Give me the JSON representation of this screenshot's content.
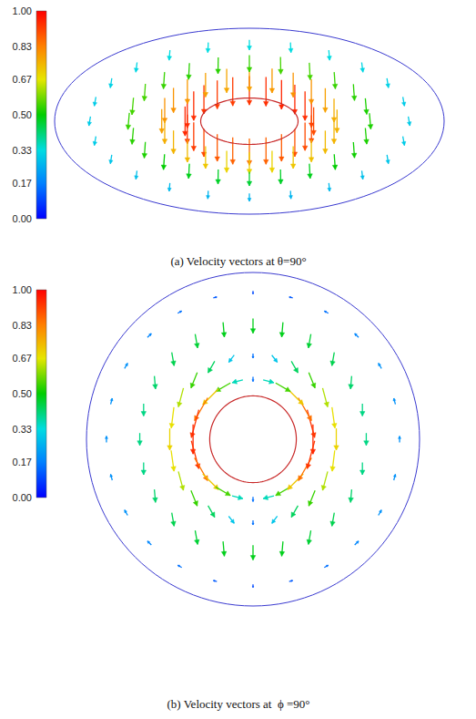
{
  "chart_data": [
    {
      "type": "vector_field",
      "title": "(a) Velocity vectors at θ=90°",
      "inner_radius": 0.25,
      "colorbar": {
        "range": [
          0,
          1
        ],
        "ticks": [
          {
            "value": 0,
            "label": "0.00"
          },
          0.17,
          0.33,
          {
            "value": 0.5,
            "label": "0.50"
          },
          0.67,
          0.83,
          {
            "value": 1,
            "label": "1.00"
          }
        ]
      },
      "angles": [
        0,
        15,
        30,
        45,
        60,
        75,
        90,
        105,
        120,
        135,
        150,
        165,
        180,
        195,
        210,
        225,
        240,
        255,
        270,
        285,
        300,
        315,
        330,
        345
      ],
      "rings": [
        {
          "r": 0.33,
          "speed": [
            0.9,
            0.92,
            0.94,
            0.95,
            0.95,
            0.94,
            0.93,
            0.92,
            0.92,
            0.93,
            0.94,
            0.95,
            0.95,
            0.94,
            0.92,
            0.9,
            0.88,
            0.87,
            0.86,
            0.87,
            0.88,
            0.89,
            0.9,
            0.9
          ],
          "direction": [
            -90,
            -90,
            -90,
            -90,
            -90,
            -90,
            -90,
            -90,
            -90,
            -90,
            -90,
            -90,
            -90,
            -90,
            -90,
            -90,
            -90,
            -90,
            -90,
            -90,
            -90,
            -90,
            -90,
            -90
          ]
        },
        {
          "r": 0.45,
          "speed": [
            0.75,
            0.76,
            0.78,
            0.8,
            0.8,
            0.79,
            0.78,
            0.77,
            0.78,
            0.79,
            0.8,
            0.8,
            0.78,
            0.76,
            0.75,
            0.74,
            0.72,
            0.7,
            0.7,
            0.7,
            0.72,
            0.73,
            0.74,
            0.75
          ],
          "direction": [
            -90,
            -90,
            -90,
            -90,
            -90,
            -90,
            -90,
            -90,
            -90,
            -90,
            -90,
            -90,
            -90,
            -90,
            -90,
            -90,
            -90,
            -90,
            -90,
            -90,
            -90,
            -90,
            -90,
            -90
          ]
        },
        {
          "r": 0.62,
          "speed": [
            0.52,
            0.52,
            0.53,
            0.54,
            0.55,
            0.55,
            0.54,
            0.53,
            0.53,
            0.54,
            0.55,
            0.55,
            0.54,
            0.53,
            0.52,
            0.5,
            0.48,
            0.47,
            0.46,
            0.47,
            0.48,
            0.5,
            0.51,
            0.52
          ],
          "direction": [
            -85,
            -85,
            -86,
            -86,
            -87,
            -89,
            -90,
            -91,
            -93,
            -94,
            -94,
            -95,
            -95,
            -95,
            -94,
            -94,
            -93,
            -91,
            -90,
            -89,
            -87,
            -86,
            -86,
            -85
          ]
        },
        {
          "r": 0.82,
          "speed": [
            0.3,
            0.3,
            0.31,
            0.32,
            0.33,
            0.33,
            0.33,
            0.33,
            0.33,
            0.32,
            0.31,
            0.3,
            0.3,
            0.3,
            0.29,
            0.28,
            0.27,
            0.26,
            0.26,
            0.26,
            0.27,
            0.28,
            0.29,
            0.3
          ],
          "direction": [
            -80,
            -80,
            -81,
            -83,
            -85,
            -87,
            -90,
            -93,
            -95,
            -97,
            -99,
            -100,
            -100,
            -100,
            -99,
            -97,
            -95,
            -93,
            -90,
            -87,
            -85,
            -83,
            -81,
            -80
          ]
        }
      ]
    },
    {
      "type": "vector_field",
      "title": "(b) Velocity vectors at  ϕ =90°",
      "inner_radius": 0.26,
      "colorbar": {
        "range": [
          0,
          1
        ],
        "ticks": [
          {
            "value": 0,
            "label": "0.00"
          },
          0.17,
          0.33,
          {
            "value": 0.5,
            "label": "0.50"
          },
          0.67,
          0.83,
          {
            "value": 1,
            "label": "1.00"
          }
        ]
      },
      "angles": [
        0,
        15,
        30,
        45,
        60,
        75,
        90,
        105,
        120,
        135,
        150,
        165,
        180,
        195,
        210,
        225,
        240,
        255,
        270,
        285,
        300,
        315,
        330,
        345
      ],
      "rings": [
        {
          "r": 0.36,
          "speed": [
            0.95,
            0.93,
            0.85,
            0.72,
            0.55,
            0.36,
            0.15,
            0.36,
            0.55,
            0.72,
            0.85,
            0.93,
            0.95,
            0.93,
            0.85,
            0.72,
            0.55,
            0.36,
            0.15,
            0.36,
            0.55,
            0.72,
            0.85,
            0.93
          ],
          "direction": [
            -90,
            -75,
            -60,
            -45,
            -30,
            -15,
            -90,
            -165,
            -150,
            -135,
            -120,
            -105,
            -90,
            -75,
            -60,
            -45,
            -30,
            -15,
            -90,
            -165,
            -150,
            -135,
            -120,
            -105
          ]
        },
        {
          "r": 0.5,
          "speed": [
            0.7,
            0.68,
            0.63,
            0.54,
            0.43,
            0.29,
            0.15,
            0.29,
            0.43,
            0.54,
            0.63,
            0.68,
            0.7,
            0.68,
            0.63,
            0.54,
            0.43,
            0.29,
            0.15,
            0.29,
            0.43,
            0.54,
            0.63,
            0.68
          ],
          "direction": [
            -90,
            -82,
            -75,
            -68,
            -60,
            -52,
            -90,
            -127,
            -120,
            -112,
            -105,
            -97,
            -90,
            -82,
            -75,
            -68,
            -60,
            -52,
            -90,
            -127,
            -120,
            -112,
            -105,
            -97
          ]
        },
        {
          "r": 0.68,
          "speed": [
            0.4,
            0.4,
            0.42,
            0.44,
            0.46,
            0.48,
            0.48,
            0.48,
            0.46,
            0.44,
            0.42,
            0.4,
            0.4,
            0.4,
            0.42,
            0.44,
            0.46,
            0.48,
            0.48,
            0.48,
            0.46,
            0.44,
            0.42,
            0.4
          ],
          "direction": [
            -90,
            -90,
            -95,
            -100,
            -100,
            -95,
            -90,
            -85,
            -80,
            -80,
            -85,
            -90,
            -90,
            -90,
            -85,
            -80,
            -80,
            -85,
            -90,
            -95,
            -100,
            -100,
            -95,
            -90
          ]
        },
        {
          "r": 0.88,
          "speed": [
            0.2,
            0.2,
            0.2,
            0.18,
            0.15,
            0.12,
            0.1,
            0.12,
            0.15,
            0.18,
            0.2,
            0.2,
            0.2,
            0.2,
            0.2,
            0.18,
            0.15,
            0.12,
            0.1,
            0.12,
            0.15,
            0.18,
            0.2,
            0.2
          ],
          "direction": [
            90,
            105,
            120,
            135,
            150,
            165,
            -90,
            15,
            30,
            45,
            60,
            75,
            90,
            105,
            120,
            135,
            150,
            165,
            -90,
            15,
            30,
            45,
            60,
            75
          ]
        }
      ]
    }
  ]
}
